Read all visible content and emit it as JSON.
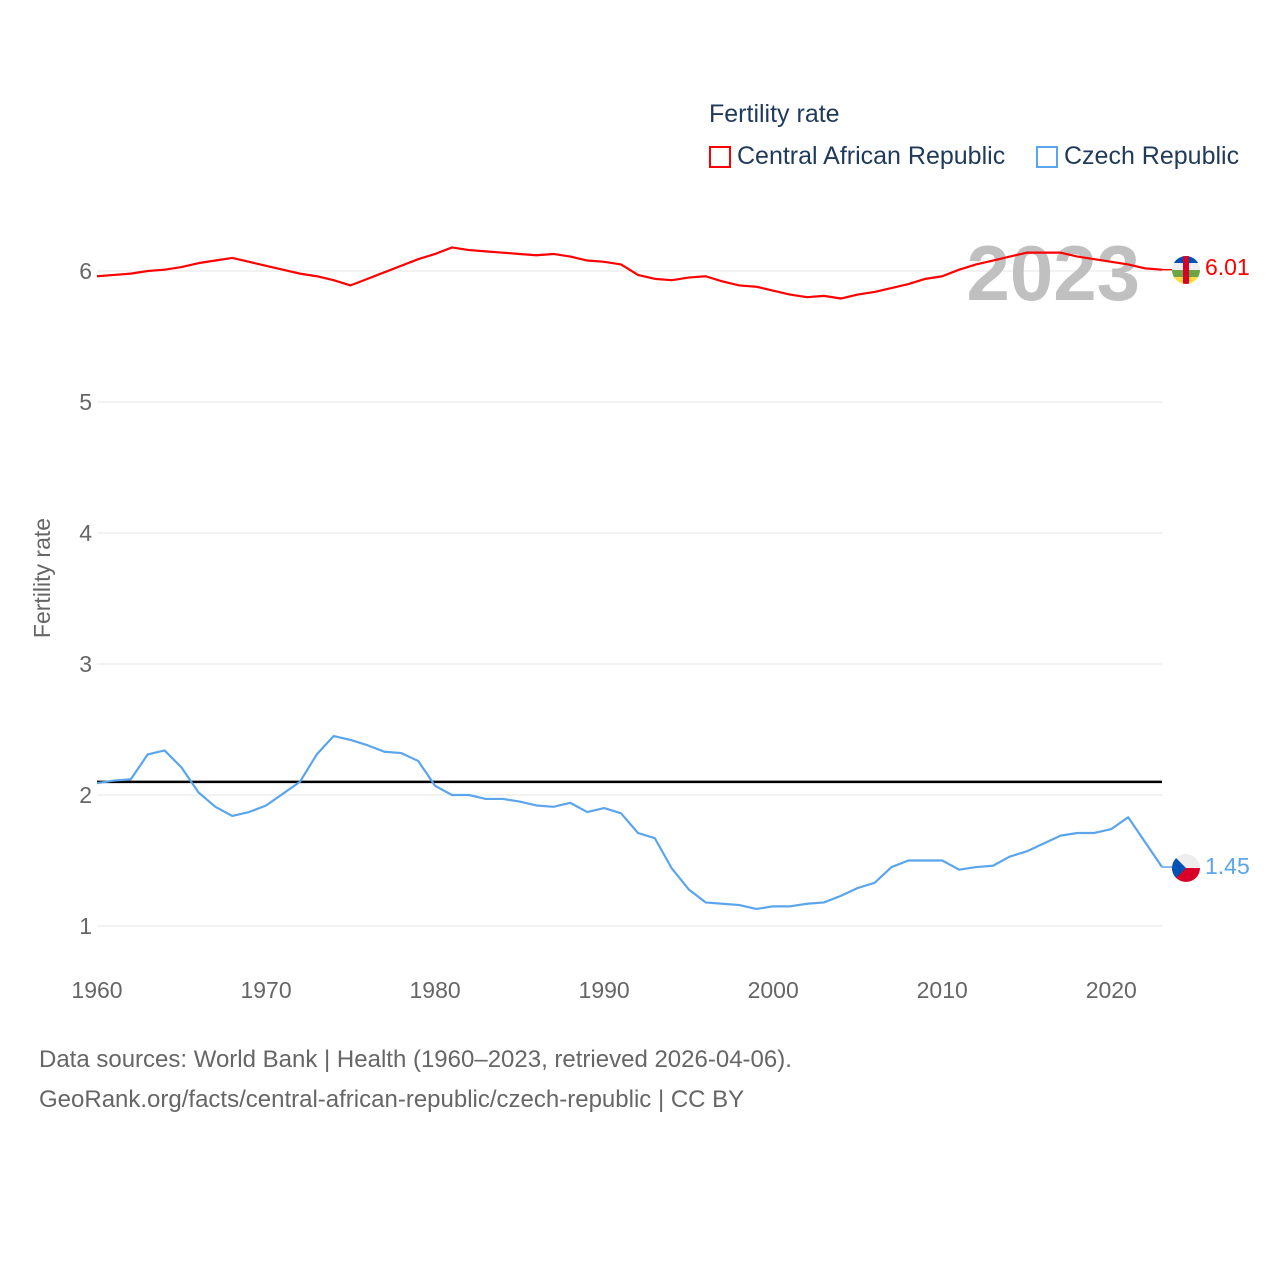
{
  "chart_data": {
    "type": "line",
    "title": "",
    "legend_title": "Fertility rate",
    "legend_placement": "top-right",
    "ylabel": "Fertility rate",
    "xlabel": "",
    "xlim": [
      1960,
      2023
    ],
    "ylim": [
      0.75,
      6.5
    ],
    "x_ticks": [
      1960,
      1970,
      1980,
      1990,
      2000,
      2010,
      2020
    ],
    "y_ticks": [
      1,
      2,
      3,
      4,
      5,
      6
    ],
    "grid": true,
    "year_watermark": "2023",
    "reference_line": {
      "value": 2.1,
      "color": "#000000"
    },
    "x": [
      1960,
      1961,
      1962,
      1963,
      1964,
      1965,
      1966,
      1967,
      1968,
      1969,
      1970,
      1971,
      1972,
      1973,
      1974,
      1975,
      1976,
      1977,
      1978,
      1979,
      1980,
      1981,
      1982,
      1983,
      1984,
      1985,
      1986,
      1987,
      1988,
      1989,
      1990,
      1991,
      1992,
      1993,
      1994,
      1995,
      1996,
      1997,
      1998,
      1999,
      2000,
      2001,
      2002,
      2003,
      2004,
      2005,
      2006,
      2007,
      2008,
      2009,
      2010,
      2011,
      2012,
      2013,
      2014,
      2015,
      2016,
      2017,
      2018,
      2019,
      2020,
      2021,
      2022,
      2023
    ],
    "series": [
      {
        "name": "Central African Republic",
        "color": "#ff0000",
        "end_label": "6.01",
        "values": [
          5.96,
          5.97,
          5.98,
          6.0,
          6.01,
          6.03,
          6.06,
          6.08,
          6.1,
          6.07,
          6.04,
          6.01,
          5.98,
          5.96,
          5.93,
          5.89,
          5.94,
          5.99,
          6.04,
          6.09,
          6.13,
          6.18,
          6.16,
          6.15,
          6.14,
          6.13,
          6.12,
          6.13,
          6.11,
          6.08,
          6.07,
          6.05,
          5.97,
          5.94,
          5.93,
          5.95,
          5.96,
          5.92,
          5.89,
          5.88,
          5.85,
          5.82,
          5.8,
          5.81,
          5.79,
          5.82,
          5.84,
          5.87,
          5.9,
          5.94,
          5.96,
          6.01,
          6.05,
          6.08,
          6.11,
          6.14,
          6.14,
          6.14,
          6.11,
          6.09,
          6.07,
          6.05,
          6.02,
          6.01
        ]
      },
      {
        "name": "Czech Republic",
        "color": "#5aa5ec",
        "end_label": "1.45",
        "values": [
          2.09,
          2.11,
          2.12,
          2.31,
          2.34,
          2.21,
          2.02,
          1.91,
          1.84,
          1.87,
          1.92,
          2.01,
          2.1,
          2.31,
          2.45,
          2.42,
          2.38,
          2.33,
          2.32,
          2.26,
          2.07,
          2.0,
          2.0,
          1.97,
          1.97,
          1.95,
          1.92,
          1.91,
          1.94,
          1.87,
          1.9,
          1.86,
          1.71,
          1.67,
          1.44,
          1.28,
          1.18,
          1.17,
          1.16,
          1.13,
          1.15,
          1.15,
          1.17,
          1.18,
          1.23,
          1.29,
          1.33,
          1.45,
          1.5,
          1.5,
          1.5,
          1.43,
          1.45,
          1.46,
          1.53,
          1.57,
          1.63,
          1.69,
          1.71,
          1.71,
          1.74,
          1.83,
          1.64,
          1.45
        ]
      }
    ]
  },
  "sources": {
    "line1": "Data sources: World Bank | Health (1960–2023, retrieved 2026-04-06).",
    "line2": "GeoRank.org/facts/central-african-republic/czech-republic | CC BY"
  }
}
